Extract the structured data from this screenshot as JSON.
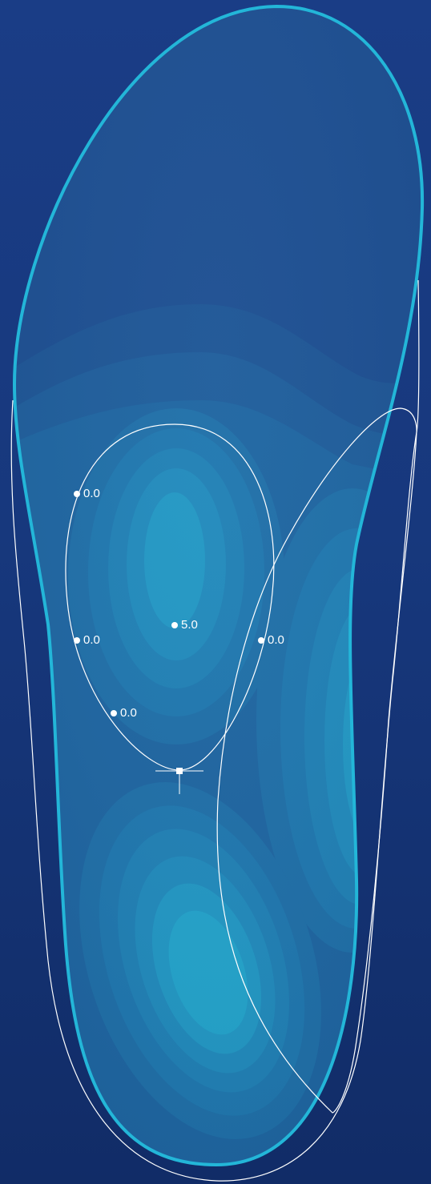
{
  "colors": {
    "background_top": "#1a3d86",
    "background_bottom": "#112c67",
    "insole_outline": "#23b6d8",
    "contour_light": "#25b3cf",
    "curve_stroke": "#ffffff"
  },
  "control_points": [
    {
      "label": "0.0",
      "icon": "control-point-dot"
    },
    {
      "label": "0.0",
      "icon": "control-point-dot"
    },
    {
      "label": "0.0",
      "icon": "control-point-dot"
    },
    {
      "label": "5.0",
      "icon": "control-point-dot"
    },
    {
      "label": "0.0",
      "icon": "control-point-dot"
    }
  ],
  "anchor_handle": {
    "icon": "square-anchor-handle"
  }
}
